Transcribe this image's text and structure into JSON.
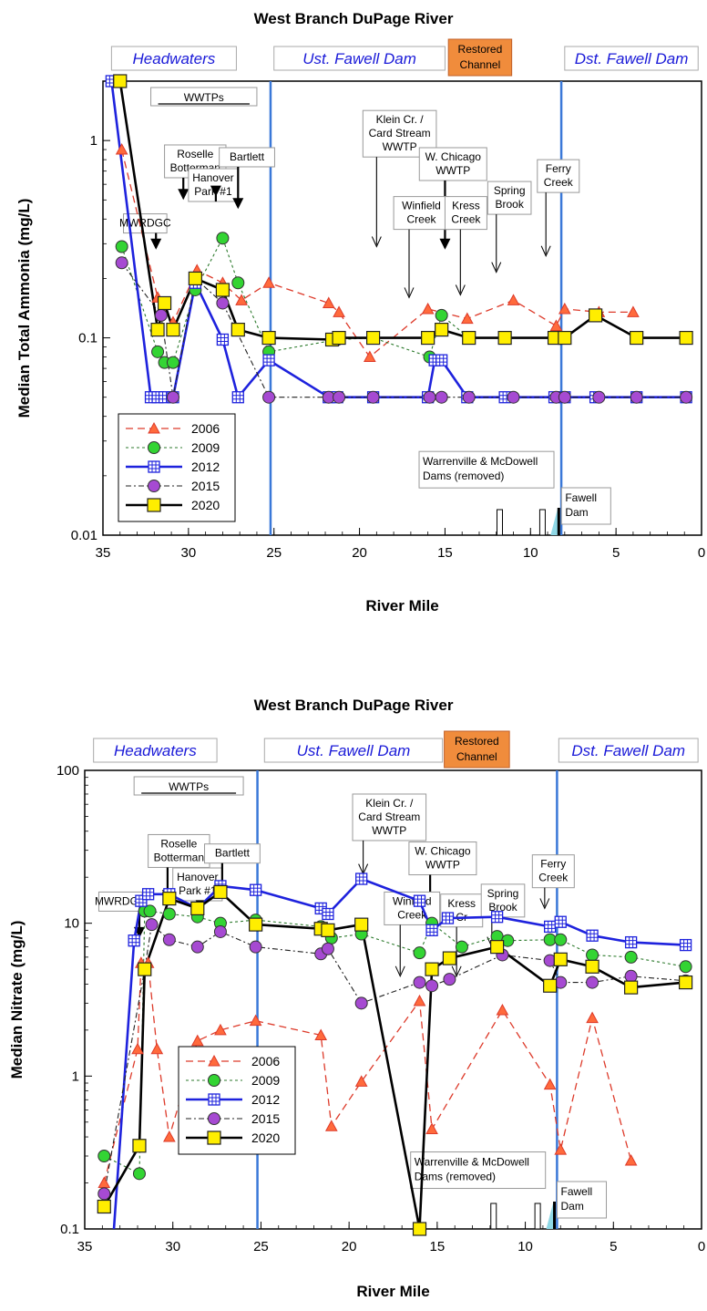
{
  "chart_data": [
    {
      "type": "line",
      "title": "West Branch DuPage River",
      "xlabel": "River Mile",
      "ylabel": "Median Total Ammonia (mg/L)",
      "xlim": [
        35,
        0
      ],
      "ylim": [
        0.01,
        2
      ],
      "yscale": "log",
      "x_reversed": true,
      "xticks": [
        35,
        30,
        25,
        20,
        15,
        10,
        5,
        0
      ],
      "yticks": [
        {
          "value": 0.01,
          "label": "0.01"
        },
        {
          "value": 0.1,
          "label": "0.1"
        },
        {
          "value": 1,
          "label": "1"
        }
      ],
      "region_lines": [
        25.2,
        8.2
      ],
      "regions": [
        {
          "label": "Headwaters",
          "x1": 34.5,
          "x2": 27.2
        },
        {
          "label": "Ust. Fawell Dam",
          "x1": 25.0,
          "x2": 15.0
        },
        {
          "label": "Dst. Fawell Dam",
          "x1": 8.0,
          "x2": 0.2
        }
      ],
      "restored": {
        "lines": [
          "Restored",
          "Channel"
        ],
        "x1": 14.8,
        "x2": 11.1
      },
      "wwtp_label": "WWTPs",
      "annotations": [
        {
          "lines": [
            "MWRDGC"
          ],
          "bx": 33.8,
          "by": 0.4,
          "ax": 31.9,
          "ay": 0.28,
          "ty": 0.425,
          "bold": true
        },
        {
          "lines": [
            "Roselle",
            "Botterman"
          ],
          "bx": 31.4,
          "by": 0.85,
          "ax": 30.3,
          "ay": 0.5,
          "ty": 0.95,
          "bold": true
        },
        {
          "lines": [
            "Hanover",
            "Park #1"
          ],
          "bx": 30.0,
          "by": 0.6,
          "ax": 28.4,
          "ay": 0.52,
          "ty": 0.72,
          "bold": true
        },
        {
          "lines": [
            "Bartlett"
          ],
          "bx": 28.2,
          "by": 0.75,
          "ax": 27.1,
          "ay": 0.45,
          "ty": 0.92,
          "bold": true
        },
        {
          "lines": [
            "Klein Cr. /",
            "Card Stream",
            "WWTP"
          ],
          "bx": 19.8,
          "by": 0.85,
          "ax": 19.0,
          "ay": 0.29,
          "ty": 1.42,
          "bold": false
        },
        {
          "lines": [
            "W. Chicago",
            "WWTP"
          ],
          "bx": 16.5,
          "by": 0.55,
          "ax": 15.0,
          "ay": 0.28,
          "ty": 0.92,
          "bold": true
        },
        {
          "lines": [
            "Winfield",
            "Creek"
          ],
          "bx": 18.0,
          "by": 0.38,
          "ax": 17.1,
          "ay": 0.16,
          "ty": 0.52,
          "bold": false
        },
        {
          "lines": [
            "Kress",
            "Creek"
          ],
          "bx": 15.0,
          "by": 0.38,
          "ax": 14.1,
          "ay": 0.165,
          "ty": 0.52,
          "bold": false
        },
        {
          "lines": [
            "Spring",
            "Brook"
          ],
          "bx": 12.5,
          "by": 0.46,
          "ax": 12.0,
          "ay": 0.215,
          "ty": 0.62,
          "bold": false
        },
        {
          "lines": [
            "Ferry",
            "Creek"
          ],
          "bx": 9.6,
          "by": 0.62,
          "ax": 9.1,
          "ay": 0.26,
          "ty": 0.8,
          "bold": false
        }
      ],
      "dam_note": {
        "lines": [
          "Warrenville & McDowell",
          "Dams (removed)"
        ],
        "x": 16.3,
        "y": 0.0185
      },
      "fawell_label": [
        "Fawell",
        "Dam"
      ],
      "series": [
        {
          "name": "2006",
          "x": [
            33.9,
            31.8,
            30.9,
            29.5,
            28.0,
            26.9,
            25.3,
            21.8,
            21.2,
            19.4,
            16.0,
            13.7,
            11.0,
            8.5,
            8.0,
            6.0,
            4.0
          ],
          "y": [
            0.9,
            0.16,
            0.12,
            0.22,
            0.19,
            0.155,
            0.19,
            0.15,
            0.135,
            0.08,
            0.14,
            0.125,
            0.155,
            0.115,
            0.14,
            0.135,
            0.135
          ]
        },
        {
          "name": "2009",
          "x": [
            33.9,
            31.8,
            31.4,
            30.9,
            29.6,
            28.0,
            27.1,
            25.3,
            21.3,
            19.2,
            15.9,
            15.2,
            13.6,
            11.5,
            8.5,
            8.0
          ],
          "y": [
            0.29,
            0.085,
            0.075,
            0.075,
            0.175,
            0.32,
            0.19,
            0.085,
            0.098,
            0.1,
            0.08,
            0.13,
            0.1,
            0.1,
            0.1,
            0.1
          ]
        },
        {
          "name": "2012",
          "x": [
            34.5,
            32.2,
            31.8,
            31.4,
            30.9,
            29.6,
            28.0,
            27.1,
            25.3,
            21.8,
            21.3,
            19.2,
            16.0,
            15.6,
            15.2,
            13.7,
            11.5,
            8.6,
            8.0,
            6.2,
            3.8,
            0.9
          ],
          "y": [
            2.0,
            0.05,
            0.05,
            0.05,
            0.05,
            0.19,
            0.098,
            0.05,
            0.077,
            0.05,
            0.05,
            0.05,
            0.05,
            0.077,
            0.077,
            0.05,
            0.05,
            0.05,
            0.05,
            0.05,
            0.05,
            0.05
          ]
        },
        {
          "name": "2015",
          "x": [
            33.9,
            31.6,
            30.9,
            29.6,
            28.0,
            25.3,
            21.8,
            21.2,
            19.2,
            15.9,
            15.2,
            13.6,
            11.0,
            8.5,
            8.0,
            6.0,
            3.8,
            0.9
          ],
          "y": [
            0.24,
            0.13,
            0.05,
            0.2,
            0.15,
            0.05,
            0.05,
            0.05,
            0.05,
            0.05,
            0.05,
            0.05,
            0.05,
            0.05,
            0.05,
            0.05,
            0.05,
            0.05
          ]
        },
        {
          "name": "2020",
          "x": [
            34.0,
            31.8,
            31.4,
            30.9,
            29.6,
            28.0,
            27.1,
            25.3,
            21.6,
            21.2,
            19.2,
            16.0,
            15.2,
            13.6,
            11.5,
            8.6,
            8.0,
            6.2,
            3.8,
            0.9
          ],
          "y": [
            2.0,
            0.11,
            0.15,
            0.11,
            0.2,
            0.175,
            0.11,
            0.1,
            0.098,
            0.1,
            0.1,
            0.1,
            0.11,
            0.1,
            0.1,
            0.1,
            0.1,
            0.13,
            0.1,
            0.1
          ]
        }
      ]
    },
    {
      "type": "line",
      "title": "West Branch DuPage River",
      "xlabel": "River Mile",
      "ylabel": "Median Nitrate (mg/L)",
      "xlim": [
        35,
        0
      ],
      "ylim": [
        0.1,
        100
      ],
      "yscale": "log",
      "x_reversed": true,
      "xticks": [
        35,
        30,
        25,
        20,
        15,
        10,
        5,
        0
      ],
      "yticks": [
        {
          "value": 0.1,
          "label": "0.1"
        },
        {
          "value": 1,
          "label": "1"
        },
        {
          "value": 10,
          "label": "10"
        },
        {
          "value": 100,
          "label": "100"
        }
      ],
      "region_lines": [
        25.2,
        8.2
      ],
      "regions": [
        {
          "label": "Headwaters",
          "x1": 34.5,
          "x2": 27.5
        },
        {
          "label": "Ust. Fawell Dam",
          "x1": 24.8,
          "x2": 14.7
        },
        {
          "label": "Dst. Fawell Dam",
          "x1": 8.1,
          "x2": 0.2
        }
      ],
      "restored": {
        "lines": [
          "Restored",
          "Channel"
        ],
        "x1": 14.6,
        "x2": 10.9
      },
      "wwtp_label": "WWTPs",
      "annotations": [
        {
          "lines": [
            "MWRDGC"
          ],
          "bx": 34.2,
          "by": 14.5,
          "ax": 31.9,
          "ay": 8.0,
          "ty": 16.0,
          "bold": true
        },
        {
          "lines": [
            "Roselle",
            "Botterman"
          ],
          "bx": 31.4,
          "by": 34.0,
          "ax": 30.3,
          "ay": 14.0,
          "ty": 38.0,
          "bold": true
        },
        {
          "lines": [
            "Hanover",
            "Park #1"
          ],
          "bx": 30.0,
          "by": 19.0,
          "ax": 28.4,
          "ay": 12.0,
          "ty": 23.0,
          "bold": true
        },
        {
          "lines": [
            "Bartlett"
          ],
          "bx": 28.2,
          "by": 27.0,
          "ax": 27.2,
          "ay": 15.0,
          "ty": 33.0,
          "bold": true
        },
        {
          "lines": [
            "Klein Cr. /",
            "Card Stream",
            "WWTP"
          ],
          "bx": 19.8,
          "by": 30.0,
          "ax": 19.2,
          "ay": 21.0,
          "ty": 70.0,
          "bold": false
        },
        {
          "lines": [
            "W. Chicago",
            "WWTP"
          ],
          "bx": 16.6,
          "by": 18.0,
          "ax": 15.4,
          "ay": 10.0,
          "ty": 34.0,
          "bold": true
        },
        {
          "lines": [
            "Winfield",
            "Creek"
          ],
          "bx": 18.0,
          "by": 11.0,
          "ax": 17.1,
          "ay": 4.5,
          "ty": 16.0,
          "bold": false
        },
        {
          "lines": [
            "Kress",
            "Cr"
          ],
          "bx": 14.8,
          "by": 10.5,
          "ax": 13.9,
          "ay": 4.5,
          "ty": 15.5,
          "bold": false
        },
        {
          "lines": [
            "Spring",
            "Brook"
          ],
          "bx": 12.5,
          "by": 13.0,
          "ax": 11.9,
          "ay": 7.0,
          "ty": 18.0,
          "bold": false
        },
        {
          "lines": [
            "Ferry",
            "Creek"
          ],
          "bx": 9.6,
          "by": 21.0,
          "ax": 8.9,
          "ay": 12.5,
          "ty": 28.0,
          "bold": false
        }
      ],
      "dam_note": {
        "lines": [
          "Warrenville & McDowell",
          "Dams (removed)"
        ],
        "x": 16.3,
        "y": 0.2
      },
      "fawell_label": [
        "Fawell",
        "Dam"
      ],
      "series": [
        {
          "name": "2006",
          "x": [
            33.9,
            32.0,
            31.8,
            31.4,
            30.9,
            30.2,
            28.6,
            27.3,
            25.3,
            21.6,
            21.0,
            19.3,
            16.0,
            15.3,
            11.3,
            8.6,
            8.0,
            6.2,
            4.0
          ],
          "y": [
            0.2,
            1.5,
            5.5,
            5.5,
            1.5,
            0.4,
            1.7,
            2.0,
            2.3,
            1.85,
            0.47,
            0.92,
            3.1,
            0.45,
            2.7,
            0.88,
            0.33,
            2.4,
            0.28
          ]
        },
        {
          "name": "2009",
          "x": [
            33.9,
            31.9,
            31.6,
            31.3,
            30.2,
            28.6,
            27.3,
            25.3,
            21.6,
            21.0,
            19.3,
            16.0,
            15.3,
            13.6,
            11.6,
            11.0,
            8.6,
            8.0,
            6.2,
            4.0,
            0.9
          ],
          "y": [
            0.3,
            0.23,
            12.0,
            12.0,
            11.5,
            11.0,
            10.0,
            10.5,
            9.5,
            8.0,
            8.5,
            6.4,
            10.0,
            7.0,
            8.2,
            7.7,
            7.8,
            7.8,
            6.2,
            6.0,
            5.2
          ]
        },
        {
          "name": "2012",
          "x": [
            33.4,
            32.2,
            31.8,
            31.4,
            30.2,
            28.6,
            27.3,
            25.3,
            21.6,
            21.2,
            19.3,
            16.0,
            15.3,
            14.4,
            11.6,
            8.6,
            8.0,
            6.2,
            4.0,
            0.9
          ],
          "y": [
            0.08,
            7.7,
            14.0,
            15.5,
            15.5,
            12.5,
            17.5,
            16.5,
            12.5,
            11.5,
            19.5,
            14.0,
            9.0,
            10.8,
            11.0,
            9.5,
            10.2,
            8.3,
            7.5,
            7.2
          ]
        },
        {
          "name": "2015",
          "x": [
            33.9,
            31.6,
            31.2,
            30.2,
            28.6,
            27.3,
            25.3,
            21.6,
            21.2,
            19.3,
            16.0,
            15.3,
            14.3,
            11.3,
            8.6,
            8.0,
            6.2,
            4.0,
            0.9
          ],
          "y": [
            0.17,
            5.0,
            9.8,
            7.8,
            7.0,
            8.8,
            7.0,
            6.3,
            6.8,
            3.0,
            4.1,
            3.9,
            4.3,
            6.2,
            5.7,
            4.1,
            4.1,
            4.5,
            4.2
          ]
        },
        {
          "name": "2020",
          "x": [
            33.9,
            31.9,
            31.6,
            30.2,
            28.6,
            27.3,
            25.3,
            21.6,
            21.2,
            19.3,
            16.0,
            15.3,
            14.3,
            11.6,
            8.6,
            8.0,
            6.2,
            4.0,
            0.9
          ],
          "y": [
            0.14,
            0.35,
            5.0,
            14.5,
            12.5,
            16.0,
            9.8,
            9.2,
            9.0,
            9.8,
            0.1,
            5.0,
            5.9,
            7.0,
            3.9,
            5.8,
            5.2,
            3.8,
            4.1
          ]
        }
      ]
    }
  ]
}
